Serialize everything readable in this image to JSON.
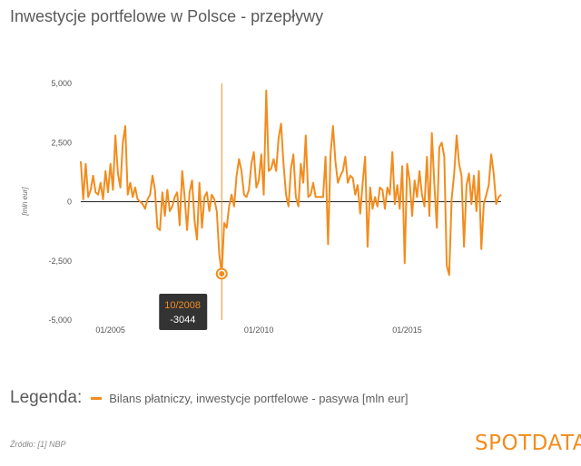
{
  "title": "Inwestycje portfelowe w Polsce - przepływy",
  "legend": {
    "title": "Legenda:",
    "series_label": "Bilans płatniczy, inwestycje portfelowe - pasywa [mln eur]"
  },
  "source": "Źródło: [1] NBP",
  "logo": "SPOTDATA",
  "colors": {
    "series": "#f28c1e",
    "zero_line": "#222222",
    "tooltip_bg": "#333333",
    "tooltip_date": "#f28c1e"
  },
  "tooltip": {
    "date": "10/2008",
    "value": "-3044"
  },
  "chart_data": {
    "type": "line",
    "ylabel": "[mln eur]",
    "ylim": [
      -5000,
      5000
    ],
    "yticks": [
      5000,
      2500,
      0,
      -2500,
      -5000
    ],
    "ytick_labels": [
      "5,000",
      "2,500",
      "0",
      "-2,500",
      "-5,000"
    ],
    "xticks": [
      {
        "label": "01/2005",
        "index": 12
      },
      {
        "label": "01/2010",
        "index": 72
      },
      {
        "label": "01/2015",
        "index": 132
      }
    ],
    "x_start": "01/2004",
    "x_end": "06/2018",
    "highlight": {
      "label": "10/2008",
      "index": 57,
      "value": -3044
    },
    "series": [
      {
        "name": "Bilans płatniczy, inwestycje portfelowe - pasywa [mln eur]",
        "values": [
          1700,
          100,
          1600,
          200,
          500,
          1100,
          400,
          300,
          800,
          100,
          1300,
          400,
          1600,
          500,
          2800,
          1200,
          600,
          2500,
          3200,
          300,
          800,
          200,
          600,
          100,
          0,
          -100,
          -300,
          100,
          300,
          1100,
          500,
          -1100,
          -1200,
          400,
          -600,
          500,
          -400,
          -200,
          200,
          400,
          -1000,
          1300,
          200,
          -1200,
          400,
          900,
          -800,
          -1600,
          800,
          -1100,
          200,
          400,
          -400,
          300,
          100,
          -400,
          -2200,
          -3044,
          -900,
          -1100,
          -200,
          300,
          -200,
          1100,
          1800,
          1300,
          300,
          200,
          500,
          1600,
          2100,
          600,
          900,
          2000,
          300,
          4700,
          1300,
          1400,
          1800,
          1300,
          2700,
          3300,
          1600,
          300,
          -200,
          1400,
          2000,
          200,
          -200,
          1600,
          800,
          2800,
          200,
          300,
          800,
          200,
          200,
          200,
          200,
          1900,
          -1800,
          2000,
          3200,
          1700,
          800,
          1100,
          1300,
          1900,
          800,
          1100,
          1000,
          300,
          700,
          -500,
          800,
          1900,
          -1900,
          600,
          -300,
          200,
          -200,
          600,
          500,
          -300,
          600,
          300,
          2100,
          -100,
          700,
          -300,
          1500,
          -2600,
          1600,
          900,
          -600,
          900,
          200,
          1300,
          300,
          -200,
          1900,
          -600,
          2900,
          700,
          -1100,
          2300,
          2500,
          1900,
          -2700,
          -3100,
          100,
          1200,
          2800,
          1600,
          1100,
          -1900,
          700,
          1200,
          -100,
          1100,
          -400,
          1300,
          -2000,
          -100,
          300,
          700,
          2000,
          1200,
          -100,
          200,
          300
        ]
      }
    ]
  }
}
